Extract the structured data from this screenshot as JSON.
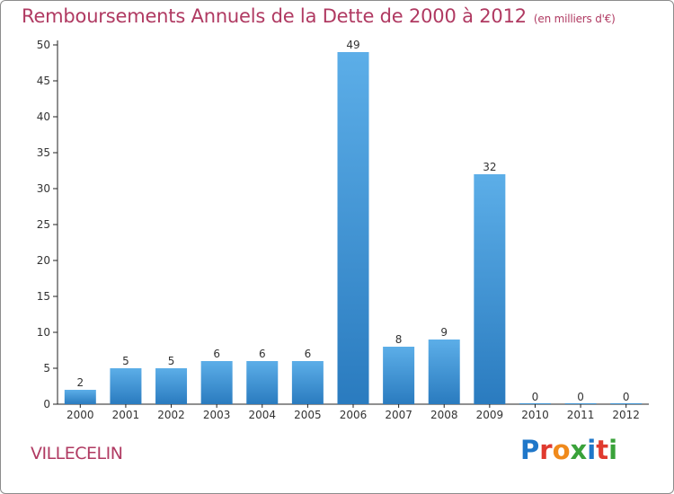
{
  "header": {
    "title": "Remboursements Annuels de la Dette de 2000 à 2012",
    "subtitle": "(en milliers d'€)"
  },
  "place_name": "VILLECELIN",
  "logo": {
    "text": "Proxiti",
    "letter_colors": [
      "#1f77c9",
      "#e03a2f",
      "#f08a1c",
      "#3aa23a",
      "#1f77c9",
      "#e03a2f",
      "#3aa23a"
    ]
  },
  "colors": {
    "bar_light": "#5caee8",
    "bar_dark": "#2a7bbf",
    "axis": "#222222",
    "grid": "#d8d8d8",
    "title": "#b03a62"
  },
  "chart_data": {
    "type": "bar",
    "categories": [
      "2000",
      "2001",
      "2002",
      "2003",
      "2004",
      "2005",
      "2006",
      "2007",
      "2008",
      "2009",
      "2010",
      "2011",
      "2012"
    ],
    "values": [
      2,
      5,
      5,
      6,
      6,
      6,
      49,
      8,
      9,
      32,
      0,
      0,
      0
    ],
    "value_labels": [
      "2",
      "5",
      "5",
      "6",
      "6",
      "6",
      "49",
      "8",
      "9",
      "32",
      "0",
      "0",
      "0"
    ],
    "yticks": [
      0,
      5,
      10,
      15,
      20,
      25,
      30,
      35,
      40,
      45,
      50
    ],
    "ylim": [
      0,
      50
    ],
    "xlabel": "",
    "ylabel": "",
    "grid": false,
    "legend": "none"
  }
}
